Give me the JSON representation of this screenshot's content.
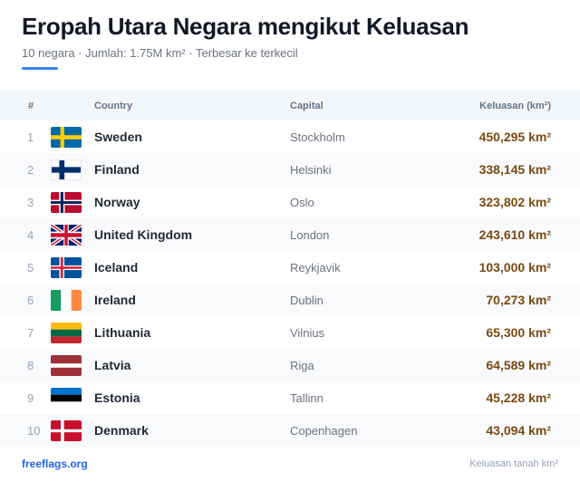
{
  "header": {
    "title": "Eropah Utara Negara mengikut Keluasan",
    "subtitle": "10 negara · Jumlah: 1.75M km² · Terbesar ke terkecil"
  },
  "table": {
    "columns": {
      "num": "#",
      "country": "Country",
      "capital": "Capital",
      "area": "Keluasan (km²)"
    },
    "rows": [
      {
        "rank": "1",
        "flag": "sweden-flag-icon",
        "country": "Sweden",
        "capital": "Stockholm",
        "area": "450,295 km²"
      },
      {
        "rank": "2",
        "flag": "finland-flag-icon",
        "country": "Finland",
        "capital": "Helsinki",
        "area": "338,145 km²"
      },
      {
        "rank": "3",
        "flag": "norway-flag-icon",
        "country": "Norway",
        "capital": "Oslo",
        "area": "323,802 km²"
      },
      {
        "rank": "4",
        "flag": "united-kingdom-flag-icon",
        "country": "United Kingdom",
        "capital": "London",
        "area": "243,610 km²"
      },
      {
        "rank": "5",
        "flag": "iceland-flag-icon",
        "country": "Iceland",
        "capital": "Reykjavik",
        "area": "103,000 km²"
      },
      {
        "rank": "6",
        "flag": "ireland-flag-icon",
        "country": "Ireland",
        "capital": "Dublin",
        "area": "70,273 km²"
      },
      {
        "rank": "7",
        "flag": "lithuania-flag-icon",
        "country": "Lithuania",
        "capital": "Vilnius",
        "area": "65,300 km²"
      },
      {
        "rank": "8",
        "flag": "latvia-flag-icon",
        "country": "Latvia",
        "capital": "Riga",
        "area": "64,589 km²"
      },
      {
        "rank": "9",
        "flag": "estonia-flag-icon",
        "country": "Estonia",
        "capital": "Tallinn",
        "area": "45,228 km²"
      },
      {
        "rank": "10",
        "flag": "denmark-flag-icon",
        "country": "Denmark",
        "capital": "Copenhagen",
        "area": "43,094 km²"
      }
    ]
  },
  "footer": {
    "brand": "freeflags.org",
    "note": "Keluasan tanah km²"
  },
  "colors": {
    "accent": "#3b82f6",
    "area_text": "#7a4a12",
    "brand": "#2563eb"
  }
}
